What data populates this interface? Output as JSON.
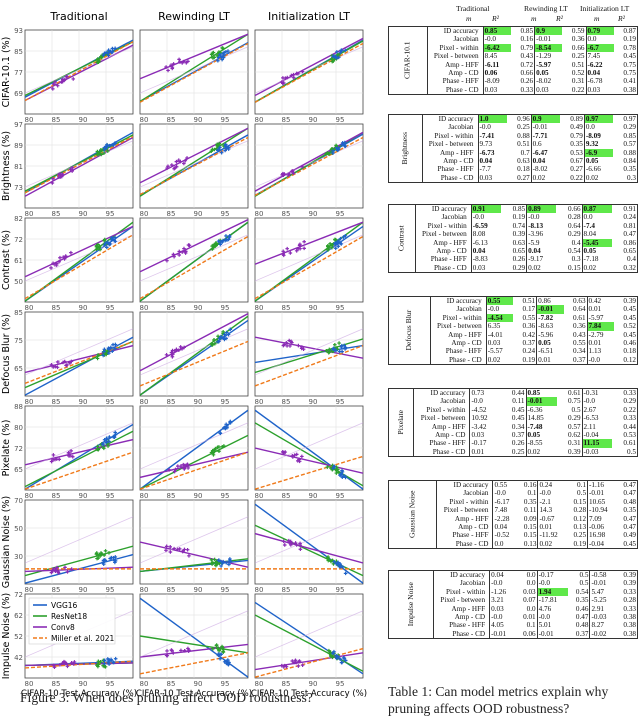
{
  "figure": {
    "col_titles": [
      "Traditional",
      "Rewinding LT",
      "Initialization LT"
    ],
    "xlabel": "CIFAR-10 Test Accuracy (%)",
    "rows": [
      {
        "ylabel": "CIFAR-10.1 (%)",
        "yticks": [
          "93",
          "85",
          "77",
          "69"
        ]
      },
      {
        "ylabel": "Brightness (%)",
        "yticks": [
          "97",
          "89",
          "81",
          "73"
        ]
      },
      {
        "ylabel": "Contrast (%)",
        "yticks": [
          "82",
          "72",
          "61",
          "50"
        ]
      },
      {
        "ylabel": "Defocus Blur (%)",
        "yticks": [
          "85",
          "75",
          "65"
        ]
      },
      {
        "ylabel": "Pixelate (%)",
        "yticks": [
          "88",
          "80",
          "72",
          "65"
        ]
      },
      {
        "ylabel": "Gaussian Noise (%)",
        "yticks": [
          "70",
          "50",
          "30"
        ]
      },
      {
        "ylabel": "Impulse Noise (%)",
        "yticks": [
          "72",
          "62",
          "52",
          "42"
        ]
      }
    ],
    "xticks": [
      "80",
      "85",
      "90",
      "95"
    ],
    "legend": [
      {
        "label": "VGG16",
        "color": "#1f63c9"
      },
      {
        "label": "ResNet18",
        "color": "#2ca02c"
      },
      {
        "label": "Conv8",
        "color": "#8a2bb5"
      },
      {
        "label": "Miller et al. 2021",
        "color": "#f07a1a"
      }
    ],
    "colors": {
      "vgg": "#1f63c9",
      "resnet": "#2ca02c",
      "conv": "#8a2bb5",
      "miller": "#f07a1a"
    }
  },
  "captions": {
    "figure": "Figure 3: When does pruning affect OOD robustness?",
    "table": "Table 1: Can model metrics explain why pruning affects OOD robustness?"
  },
  "table": {
    "col_headers": [
      "Traditional",
      "Rewinding LT",
      "Initialization LT"
    ],
    "sub_headers": [
      "m",
      "R²",
      "m",
      "R²",
      "m",
      "R²"
    ],
    "blocks": [
      {
        "name": "CIFAR-10.1",
        "rows": [
          [
            "ID accuracy",
            "0.85",
            "0.85",
            "0.9",
            "0.59",
            "0.79",
            "0.87"
          ],
          [
            "Jacobian",
            "-0.0",
            "0.16",
            "-0.01",
            "0.36",
            "0.0",
            "0.19"
          ],
          [
            "Pixel - within",
            "-6.42",
            "0.79",
            "-8.54",
            "0.66",
            "-6.7",
            "0.78"
          ],
          [
            "Pixel - between",
            "8.45",
            "0.43",
            "-1.29",
            "0.25",
            "7.45",
            "0.45"
          ],
          [
            "Amp - HFF",
            "-6.11",
            "0.72",
            "-5.97",
            "0.51",
            "-6.22",
            "0.75"
          ],
          [
            "Amp - CD",
            "0.06",
            "0.66",
            "0.05",
            "0.52",
            "0.04",
            "0.75"
          ],
          [
            "Phase - HFF",
            "-8.09",
            "0.26",
            "-8.02",
            "0.31",
            "-6.78",
            "0.41"
          ],
          [
            "Phase - CD",
            "0.03",
            "0.33",
            "0.03",
            "0.22",
            "0.03",
            "0.38"
          ]
        ]
      },
      {
        "name": "Brightness",
        "rows": [
          [
            "ID accuracy",
            "1.0",
            "0.96",
            "0.9",
            "0.89",
            "0.97",
            "0.97"
          ],
          [
            "Jacobian",
            "-0.0",
            "0.25",
            "-0.01",
            "0.49",
            "0.0",
            "0.29"
          ],
          [
            "Pixel - within",
            "-7.41",
            "0.88",
            "-7.71",
            "0.79",
            "-8.09",
            "0.85"
          ],
          [
            "Pixel - between",
            "9.73",
            "0.51",
            "0.6",
            "0.35",
            "9.32",
            "0.57"
          ],
          [
            "Amp - HFF",
            "-6.73",
            "0.7",
            "-6.47",
            "0.53",
            "-6.9",
            "0.88"
          ],
          [
            "Amp - CD",
            "0.04",
            "0.63",
            "0.04",
            "0.67",
            "0.05",
            "0.84"
          ],
          [
            "Phase - HFF",
            "-7.7",
            "0.18",
            "-8.02",
            "0.27",
            "-6.66",
            "0.35"
          ],
          [
            "Phase - CD",
            "0.03",
            "0.27",
            "0.02",
            "0.22",
            "0.02",
            "0.3"
          ]
        ]
      },
      {
        "name": "Contrast",
        "rows": [
          [
            "ID accuracy",
            "0.91",
            "0.85",
            "0.89",
            "0.66",
            "0.87",
            "0.91"
          ],
          [
            "Jacobian",
            "-0.0",
            "0.19",
            "-0.0",
            "0.28",
            "0.0",
            "0.24"
          ],
          [
            "Pixel - within",
            "-6.59",
            "0.74",
            "-8.13",
            "0.64",
            "-7.4",
            "0.81"
          ],
          [
            "Pixel - between",
            "8.08",
            "0.39",
            "-3.96",
            "0.29",
            "8.04",
            "0.47"
          ],
          [
            "Amp - HFF",
            "-6.13",
            "0.63",
            "-5.9",
            "0.4",
            "-5.45",
            "0.86"
          ],
          [
            "Amp - CD",
            "0.04",
            "0.65",
            "0.04",
            "0.54",
            "0.05",
            "0.65"
          ],
          [
            "Phase - HFF",
            "-8.83",
            "0.26",
            "-9.17",
            "0.3",
            "-7.18",
            "0.4"
          ],
          [
            "Phase - CD",
            "0.03",
            "0.29",
            "0.02",
            "0.15",
            "0.02",
            "0.32"
          ]
        ]
      },
      {
        "name": "Defocus Blur",
        "rows": [
          [
            "ID accuracy",
            "0.55",
            "0.51",
            "0.86",
            "0.63",
            "0.42",
            "0.39"
          ],
          [
            "Jacobian",
            "-0.0",
            "0.17",
            "-0.01",
            "0.64",
            "0.01",
            "0.45"
          ],
          [
            "Pixel - within",
            "-4.54",
            "0.55",
            "-7.82",
            "0.61",
            "-5.97",
            "0.45"
          ],
          [
            "Pixel - between",
            "6.35",
            "0.36",
            "-8.63",
            "0.36",
            "7.84",
            "0.52"
          ],
          [
            "Amp - HFF",
            "-4.01",
            "0.42",
            "-5.96",
            "0.43",
            "-2.79",
            "0.45"
          ],
          [
            "Amp - CD",
            "0.03",
            "0.37",
            "0.05",
            "0.55",
            "0.01",
            "0.46"
          ],
          [
            "Phase - HFF",
            "-5.57",
            "0.24",
            "-6.51",
            "0.34",
            "1.13",
            "0.18"
          ],
          [
            "Phase - CD",
            "0.02",
            "0.19",
            "0.01",
            "0.37",
            "-0.0",
            "0.12"
          ]
        ]
      },
      {
        "name": "Pixelate",
        "rows": [
          [
            "ID accuracy",
            "0.73",
            "0.44",
            "0.85",
            "0.61",
            "-0.31",
            "0.33"
          ],
          [
            "Jacobian",
            "-0.0",
            "0.11",
            "-0.01",
            "0.75",
            "-0.0",
            "0.29"
          ],
          [
            "Pixel - within",
            "-4.52",
            "0.45",
            "-6.36",
            "0.5",
            "2.67",
            "0.22"
          ],
          [
            "Pixel - between",
            "10.92",
            "0.45",
            "14.85",
            "0.29",
            "-6.53",
            "0.33"
          ],
          [
            "Amp - HFF",
            "-3.42",
            "0.34",
            "-7.48",
            "0.57",
            "2.11",
            "0.44"
          ],
          [
            "Amp - CD",
            "0.03",
            "0.37",
            "0.05",
            "0.62",
            "-0.04",
            "0.53"
          ],
          [
            "Phase - HFF",
            "-0.17",
            "0.26",
            "-8.55",
            "0.31",
            "11.15",
            "0.61"
          ],
          [
            "Phase - CD",
            "0.01",
            "0.25",
            "0.02",
            "0.39",
            "-0.03",
            "0.5"
          ]
        ]
      },
      {
        "name": "Gaussian Noise",
        "rows": [
          [
            "ID accuracy",
            "0.55",
            "0.16",
            "0.24",
            "0.1",
            "-1.16",
            "0.47"
          ],
          [
            "Jacobian",
            "-0.0",
            "0.1",
            "-0.0",
            "0.5",
            "-0.01",
            "0.47"
          ],
          [
            "Pixel - within",
            "-6.17",
            "0.35",
            "-2.1",
            "0.15",
            "10.65",
            "0.48"
          ],
          [
            "Pixel - between",
            "7.48",
            "0.11",
            "14.3",
            "0.28",
            "-10.94",
            "0.35"
          ],
          [
            "Amp - HFF",
            "-2.28",
            "0.09",
            "-0.67",
            "0.12",
            "7.09",
            "0.47"
          ],
          [
            "Amp - CD",
            "0.04",
            "0.15",
            "0.01",
            "0.13",
            "-0.06",
            "0.47"
          ],
          [
            "Phase - HFF",
            "-0.52",
            "0.15",
            "-11.92",
            "0.25",
            "16.98",
            "0.49"
          ],
          [
            "Phase - CD",
            "0.0",
            "0.13",
            "0.02",
            "0.19",
            "-0.04",
            "0.45"
          ]
        ]
      },
      {
        "name": "Impulse Noise",
        "rows": [
          [
            "ID accuracy",
            "0.04",
            "0.0",
            "-0.17",
            "0.5",
            "-0.58",
            "0.39"
          ],
          [
            "Jacobian",
            "-0.0",
            "0.0",
            "-0.0",
            "0.5",
            "-0.01",
            "0.39"
          ],
          [
            "Pixel - within",
            "-1.26",
            "0.03",
            "1.94",
            "0.54",
            "5.47",
            "0.33"
          ],
          [
            "Pixel - between",
            "3.21",
            "0.07",
            "-17.81",
            "0.35",
            "-5.25",
            "0.28"
          ],
          [
            "Amp - HFF",
            "0.03",
            "0.0",
            "4.76",
            "0.46",
            "2.91",
            "0.33"
          ],
          [
            "Amp - CD",
            "-0.0",
            "0.01",
            "-0.0",
            "0.47",
            "-0.03",
            "0.38"
          ],
          [
            "Phase - HFF",
            "4.05",
            "0.1",
            "5.01",
            "0.48",
            "8.27",
            "0.38"
          ],
          [
            "Phase - CD",
            "-0.01",
            "0.06",
            "-0.01",
            "0.37",
            "-0.02",
            "0.38"
          ]
        ]
      }
    ]
  }
}
